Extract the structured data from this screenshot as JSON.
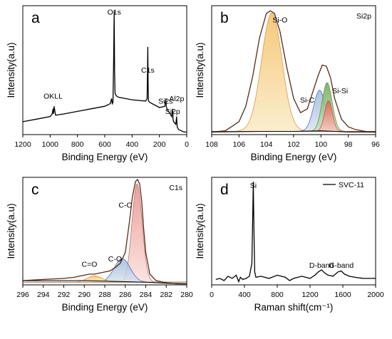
{
  "chart_data": [
    {
      "panel": "a",
      "type": "line",
      "xlabel": "Binding Energy (eV)",
      "ylabel": "Intensity(a.u)",
      "xlim": [
        1200,
        0
      ],
      "ylim": [
        0,
        100
      ],
      "xticks": [
        1200,
        1000,
        800,
        600,
        400,
        200,
        0
      ],
      "annotations": [
        {
          "text": "O1s",
          "x": 531,
          "y": 93
        },
        {
          "text": "C1s",
          "x": 285,
          "y": 48
        },
        {
          "text": "OKLL",
          "x": 978,
          "y": 28
        },
        {
          "text": "Si2s",
          "x": 155,
          "y": 24
        },
        {
          "text": "Si2p",
          "x": 103,
          "y": 16
        },
        {
          "text": "Al2p",
          "x": 74,
          "y": 26
        }
      ],
      "series": [
        {
          "color": "#000000",
          "x": [
            1200,
            1100,
            1000,
            985,
            978,
            975,
            971,
            960,
            900,
            800,
            700,
            600,
            560,
            550,
            545,
            540,
            535,
            531,
            528,
            525,
            515,
            500,
            400,
            300,
            290,
            285,
            283,
            280,
            270,
            200,
            160,
            153,
            150,
            145,
            110,
            103,
            100,
            96,
            80,
            74,
            70,
            60,
            20,
            0
          ],
          "y": [
            10,
            12,
            14,
            16,
            20,
            16,
            22,
            15,
            16,
            18,
            20,
            22,
            24,
            28,
            24,
            25,
            60,
            96,
            48,
            32,
            30,
            29,
            27,
            26,
            28,
            68,
            40,
            26,
            25,
            21,
            22,
            28,
            22,
            20,
            14,
            20,
            12,
            10,
            8,
            14,
            6,
            4,
            2,
            2
          ]
        }
      ]
    },
    {
      "panel": "b",
      "type": "line",
      "title": "Si2p",
      "xlabel": "Binding Energy (eV)",
      "ylabel": "Intensity(a.u)",
      "xlim": [
        108,
        96
      ],
      "ylim": [
        0,
        100
      ],
      "xticks": [
        108,
        106,
        104,
        102,
        100,
        98,
        96
      ],
      "annotations": [
        {
          "text": "Si-O",
          "x": 103.0,
          "y": 87
        },
        {
          "text": "Si-C",
          "x": 101.0,
          "y": 25
        },
        {
          "text": "Si-Si",
          "x": 98.6,
          "y": 32
        }
      ],
      "series": [
        {
          "color": "#5a2a1a",
          "x": [
            108,
            107,
            106,
            105.5,
            105,
            104.5,
            104,
            103.7,
            103.4,
            103,
            102.5,
            102,
            101.5,
            101,
            100.6,
            100.2,
            99.9,
            99.6,
            99.3,
            99,
            98.5,
            98,
            97.5,
            97,
            96.5,
            96
          ],
          "y": [
            2,
            3,
            10,
            22,
            45,
            75,
            94,
            96,
            94,
            80,
            52,
            28,
            17,
            20,
            33,
            46,
            54,
            53,
            44,
            28,
            12,
            6,
            4,
            3,
            2,
            2
          ]
        },
        {
          "color": "#000000",
          "x": [
            108,
            104,
            102,
            100,
            98,
            96
          ],
          "y": [
            2,
            2.5,
            2.5,
            3,
            2,
            2
          ]
        }
      ]
    },
    {
      "panel": "c",
      "type": "line",
      "title": "C1s",
      "xlabel": "Binding Energy (eV)",
      "ylabel": "Intensity(a.u)",
      "xlim": [
        296,
        280
      ],
      "ylim": [
        0,
        100
      ],
      "xticks": [
        296,
        294,
        292,
        290,
        288,
        286,
        284,
        282,
        280
      ],
      "annotations": [
        {
          "text": "C-C",
          "x": 286.0,
          "y": 72
        },
        {
          "text": "C-O",
          "x": 287.0,
          "y": 22
        },
        {
          "text": "C=O",
          "x": 289.5,
          "y": 17
        }
      ],
      "series": [
        {
          "color": "#5a2a1a",
          "x": [
            296,
            294,
            292,
            291,
            290,
            289.5,
            289,
            288.5,
            288,
            287.5,
            287,
            286.5,
            286,
            285.6,
            285.3,
            285,
            284.8,
            284.6,
            284.4,
            284.2,
            284,
            283.6,
            283,
            282,
            281,
            280
          ],
          "y": [
            4,
            5,
            6,
            7,
            9,
            10,
            10,
            11,
            12,
            13,
            16,
            20,
            30,
            58,
            82,
            96,
            98,
            94,
            78,
            52,
            30,
            10,
            4,
            2,
            1,
            1
          ]
        },
        {
          "color": "#000000",
          "x": [
            296,
            290,
            286,
            284,
            282,
            280
          ],
          "y": [
            4,
            4,
            3,
            2.5,
            1.5,
            1
          ]
        }
      ]
    },
    {
      "panel": "d",
      "type": "line",
      "xlabel": "Raman shift(cm⁻¹)",
      "ylabel": "Intensity(a.u)",
      "xlim": [
        0,
        2000
      ],
      "ylim": [
        0,
        100
      ],
      "xticks": [
        0,
        400,
        800,
        1200,
        1600,
        2000
      ],
      "legend": {
        "position": "top-right",
        "entries": [
          "SVC-11"
        ]
      },
      "annotations": [
        {
          "text": "Si",
          "x": 508,
          "y": 90
        },
        {
          "text": "D-band",
          "x": 1340,
          "y": 16
        },
        {
          "text": "G-band",
          "x": 1580,
          "y": 16
        }
      ],
      "series": [
        {
          "name": "SVC-11",
          "color": "#000000",
          "x": [
            50,
            100,
            150,
            200,
            250,
            300,
            330,
            350,
            380,
            420,
            460,
            490,
            500,
            508,
            515,
            525,
            540,
            600,
            700,
            800,
            900,
            950,
            1000,
            1100,
            1200,
            1260,
            1300,
            1340,
            1380,
            1420,
            1480,
            1540,
            1580,
            1620,
            1680,
            1750,
            1850,
            2000
          ],
          "y": [
            5,
            6,
            4,
            8,
            6,
            9,
            3,
            7,
            5,
            6,
            8,
            20,
            60,
            96,
            55,
            12,
            7,
            8,
            6,
            9,
            7,
            4,
            6,
            8,
            6,
            9,
            12,
            14,
            11,
            9,
            8,
            12,
            13,
            10,
            8,
            7,
            6,
            6
          ]
        }
      ]
    }
  ],
  "panel_tags": [
    "a",
    "b",
    "c",
    "d"
  ]
}
